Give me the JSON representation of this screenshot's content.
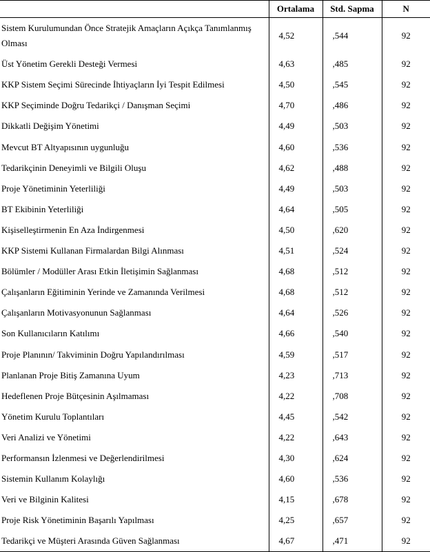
{
  "headers": {
    "blank": "",
    "mean": "Ortalama",
    "std": "Std. Sapma",
    "n": "N"
  },
  "rows": [
    {
      "label": "Sistem Kurulumundan Önce Stratejik Amaçların Açıkça Tanımlanmış Olması",
      "mean": "4,52",
      "std": ",544",
      "n": "92"
    },
    {
      "label": "Üst Yönetim Gerekli Desteği Vermesi",
      "mean": "4,63",
      "std": ",485",
      "n": "92"
    },
    {
      "label": "KKP Sistem Seçimi Sürecinde İhtiyaçların İyi Tespit Edilmesi",
      "mean": "4,50",
      "std": ",545",
      "n": "92"
    },
    {
      "label": "KKP Seçiminde Doğru Tedarikçi / Danışman Seçimi",
      "mean": "4,70",
      "std": ",486",
      "n": "92"
    },
    {
      "label": "Dikkatli Değişim Yönetimi",
      "mean": "4,49",
      "std": ",503",
      "n": "92"
    },
    {
      "label": "Mevcut BT Altyapısının uygunluğu",
      "mean": "4,60",
      "std": ",536",
      "n": "92"
    },
    {
      "label": "Tedarikçinin Deneyimli ve Bilgili Oluşu",
      "mean": "4,62",
      "std": ",488",
      "n": "92"
    },
    {
      "label": "Proje Yönetiminin Yeterliliği",
      "mean": "4,49",
      "std": ",503",
      "n": "92"
    },
    {
      "label": "BT Ekibinin Yeterliliği",
      "mean": "4,64",
      "std": ",505",
      "n": "92"
    },
    {
      "label": "Kişiselleştirmenin En Aza İndirgenmesi",
      "mean": "4,50",
      "std": ",620",
      "n": "92"
    },
    {
      "label": "KKP Sistemi Kullanan Firmalardan Bilgi Alınması",
      "mean": "4,51",
      "std": ",524",
      "n": "92"
    },
    {
      "label": "Bölümler / Modüller Arası Etkin İletişimin Sağlanması",
      "mean": "4,68",
      "std": ",512",
      "n": "92"
    },
    {
      "label": "Çalışanların Eğitiminin Yerinde ve Zamanında Verilmesi",
      "mean": "4,68",
      "std": ",512",
      "n": "92"
    },
    {
      "label": "Çalışanların Motivasyonunun Sağlanması",
      "mean": "4,64",
      "std": ",526",
      "n": "92"
    },
    {
      "label": "Son Kullanıcıların Katılımı",
      "mean": "4,66",
      "std": ",540",
      "n": "92"
    },
    {
      "label": "Proje Planının/ Takviminin Doğru Yapılandırılması",
      "mean": "4,59",
      "std": ",517",
      "n": "92"
    },
    {
      "label": "Planlanan Proje Bitiş Zamanına Uyum",
      "mean": "4,23",
      "std": ",713",
      "n": "92"
    },
    {
      "label": "Hedeflenen Proje Bütçesinin Aşılmaması",
      "mean": "4,22",
      "std": ",708",
      "n": "92"
    },
    {
      "label": "Yönetim Kurulu Toplantıları",
      "mean": "4,45",
      "std": ",542",
      "n": "92"
    },
    {
      "label": "Veri Analizi ve Yönetimi",
      "mean": "4,22",
      "std": ",643",
      "n": "92"
    },
    {
      "label": "Performansın İzlenmesi ve Değerlendirilmesi",
      "mean": "4,30",
      "std": ",624",
      "n": "92"
    },
    {
      "label": "Sistemin Kullanım Kolaylığı",
      "mean": "4,60",
      "std": ",536",
      "n": "92"
    },
    {
      "label": "Veri ve Bilginin Kalitesi",
      "mean": "4,15",
      "std": ",678",
      "n": "92"
    },
    {
      "label": "Proje Risk Yönetiminin Başarılı Yapılması",
      "mean": "4,25",
      "std": ",657",
      "n": "92"
    },
    {
      "label": "Tedarikçi ve Müşteri Arasında Güven Sağlanması",
      "mean": "4,67",
      "std": ",471",
      "n": "92"
    }
  ]
}
